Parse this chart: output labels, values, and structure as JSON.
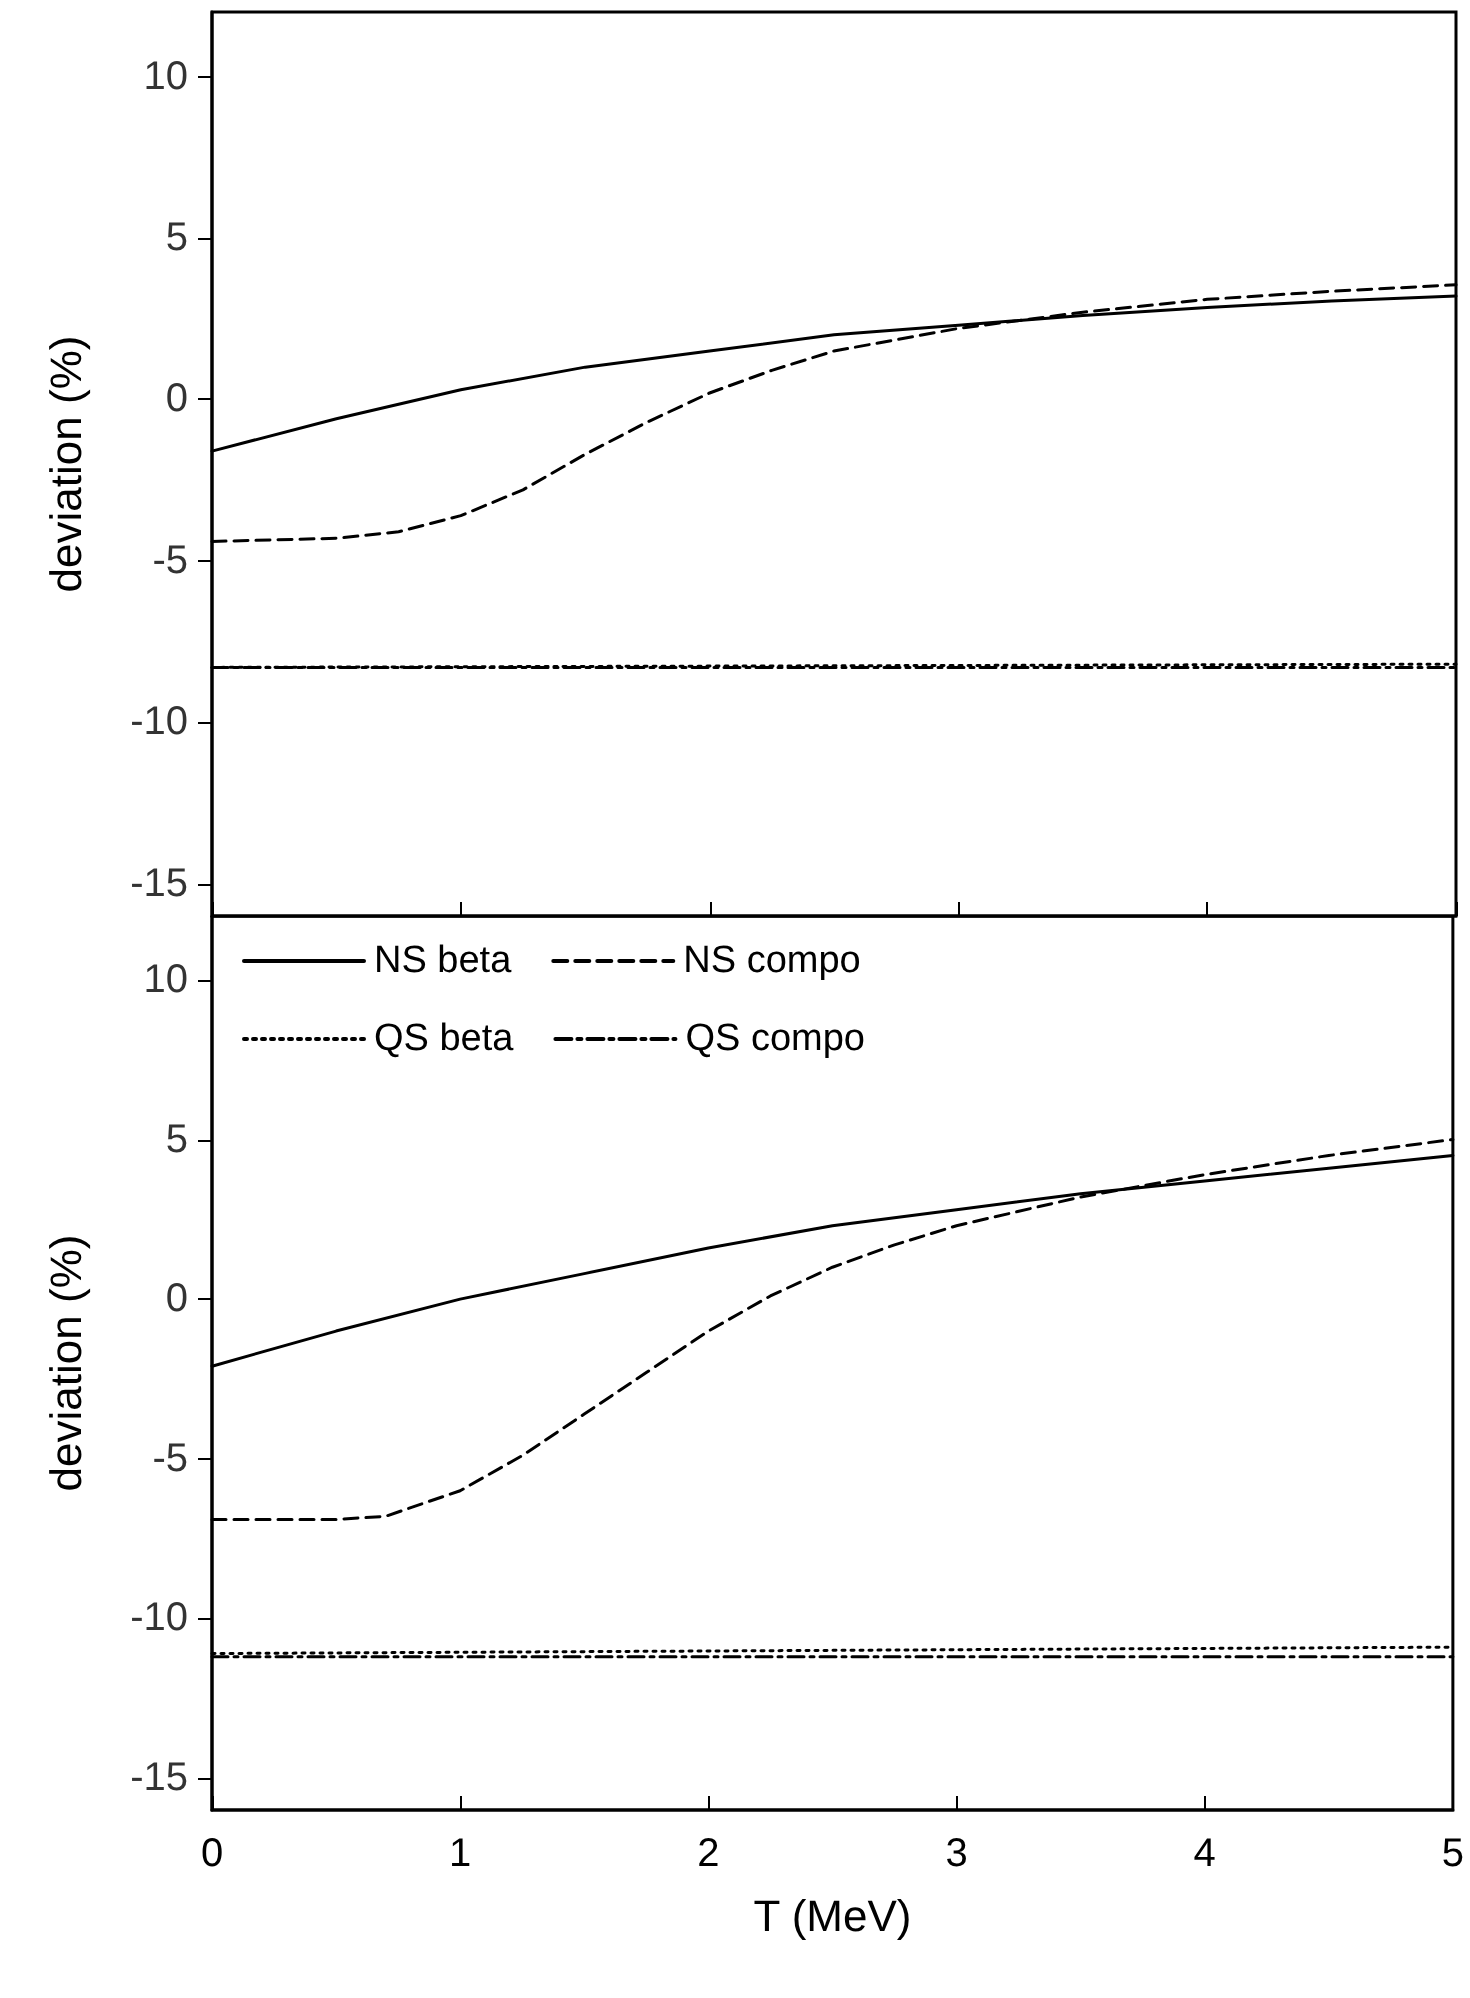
{
  "chart_data": [
    {
      "type": "line",
      "ylabel": "deviation (%)",
      "xlim": [
        0,
        5
      ],
      "xticks": [
        0,
        1,
        2,
        3,
        4,
        5
      ],
      "ylim": [
        -16,
        12
      ],
      "yticks": [
        -15,
        -10,
        -5,
        0,
        5,
        10
      ],
      "tick_labels": "y",
      "grid": false,
      "legend": false,
      "marker": "none",
      "series": [
        {
          "color": "#000000",
          "line_style": "solid",
          "x": [
            0,
            0.5,
            1,
            1.5,
            2,
            2.5,
            3,
            3.5,
            4,
            4.5,
            5
          ],
          "values": [
            -1.6,
            -0.6,
            0.3,
            1.0,
            1.5,
            2.0,
            2.3,
            2.6,
            2.85,
            3.05,
            3.2
          ]
        },
        {
          "color": "#000000",
          "line_style": "dashed",
          "x": [
            0,
            0.5,
            0.75,
            1,
            1.25,
            1.5,
            1.75,
            2,
            2.25,
            2.5,
            3,
            3.5,
            4,
            4.5,
            5
          ],
          "values": [
            -4.4,
            -4.3,
            -4.1,
            -3.6,
            -2.8,
            -1.7,
            -0.7,
            0.2,
            0.9,
            1.5,
            2.2,
            2.7,
            3.1,
            3.35,
            3.55
          ]
        },
        {
          "color": "#000000",
          "line_style": "dotted",
          "x": [
            0,
            5
          ],
          "values": [
            -8.3,
            -8.2
          ]
        },
        {
          "color": "#000000",
          "line_style": "dashdot",
          "x": [
            0,
            5
          ],
          "values": [
            -8.3,
            -8.3
          ]
        }
      ]
    },
    {
      "type": "line",
      "xlabel": "T (MeV)",
      "ylabel": "deviation (%)",
      "xlim": [
        0,
        5
      ],
      "xticks": [
        0,
        1,
        2,
        3,
        4,
        5
      ],
      "ylim": [
        -16,
        12
      ],
      "yticks": [
        -15,
        -10,
        -5,
        0,
        5,
        10
      ],
      "grid": false,
      "legend": "top left",
      "marker": "none",
      "series": [
        {
          "name": "NS beta",
          "color": "#000000",
          "line_style": "solid",
          "x": [
            0,
            0.5,
            1,
            1.5,
            2,
            2.5,
            3,
            3.5,
            4,
            4.5,
            5
          ],
          "values": [
            -2.1,
            -1.0,
            0,
            0.8,
            1.6,
            2.3,
            2.8,
            3.3,
            3.7,
            4.1,
            4.5
          ]
        },
        {
          "name": "NS compo",
          "color": "#000000",
          "line_style": "dashed",
          "x": [
            0,
            0.5,
            0.7,
            1,
            1.25,
            1.5,
            1.75,
            2,
            2.25,
            2.5,
            2.75,
            3,
            3.5,
            4,
            4.5,
            5
          ],
          "values": [
            -6.9,
            -6.9,
            -6.8,
            -6.0,
            -4.9,
            -3.6,
            -2.3,
            -1.0,
            0.1,
            1.0,
            1.7,
            2.3,
            3.2,
            3.9,
            4.5,
            5.0
          ]
        },
        {
          "name": "QS beta",
          "color": "#000000",
          "line_style": "dotted",
          "x": [
            0,
            5
          ],
          "values": [
            -11.1,
            -10.9
          ]
        },
        {
          "name": "QS compo",
          "color": "#000000",
          "line_style": "dashdot",
          "x": [
            0,
            5
          ],
          "values": [
            -11.2,
            -11.2
          ]
        }
      ]
    }
  ]
}
